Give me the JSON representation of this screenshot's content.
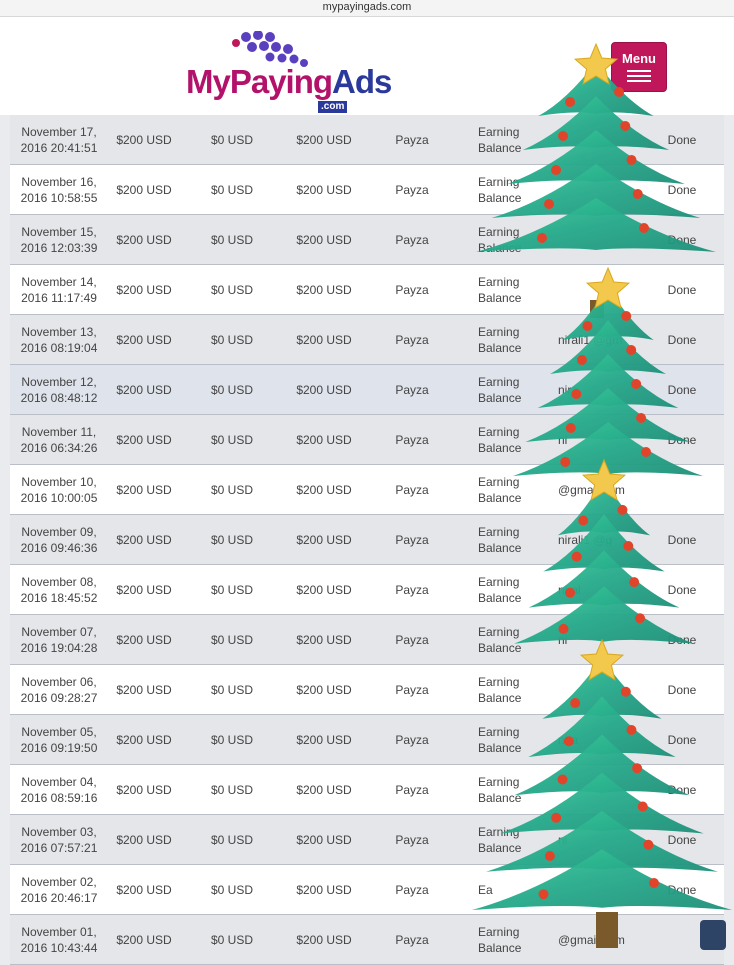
{
  "browser": {
    "url": "mypayingads.com"
  },
  "logo": {
    "part1": "My",
    "part2": "Paying",
    "part3": "Ads",
    "suffix": ".com"
  },
  "menu": {
    "label": "Menu"
  },
  "rows": [
    {
      "date": "November 17, 2016 20:41:51",
      "amount": "$200 USD",
      "fee": "$0 USD",
      "net": "$200 USD",
      "gateway": "Payza",
      "source": "Earning Balance",
      "account": "",
      "status": "Done"
    },
    {
      "date": "November 16, 2016 10:58:55",
      "amount": "$200 USD",
      "fee": "$0 USD",
      "net": "$200 USD",
      "gateway": "Payza",
      "source": "Earning Balance",
      "account": "",
      "status": "Done"
    },
    {
      "date": "November 15, 2016 12:03:39",
      "amount": "$200 USD",
      "fee": "$0 USD",
      "net": "$200 USD",
      "gateway": "Payza",
      "source": "Earning Balance",
      "account": "",
      "status": "Done"
    },
    {
      "date": "November 14, 2016 11:17:49",
      "amount": "$200 USD",
      "fee": "$0 USD",
      "net": "$200 USD",
      "gateway": "Payza",
      "source": "Earning Balance",
      "account": "",
      "status": "Done"
    },
    {
      "date": "November 13, 2016 08:19:04",
      "amount": "$200 USD",
      "fee": "$0 USD",
      "net": "$200 USD",
      "gateway": "Payza",
      "source": "Earning Balance",
      "account": "nirali1 @gm",
      "status": "Done"
    },
    {
      "date": "November 12, 2016 08:48:12",
      "amount": "$200 USD",
      "fee": "$0 USD",
      "net": "$200 USD",
      "gateway": "Payza",
      "source": "Earning Balance",
      "account": "nira",
      "status": "Done"
    },
    {
      "date": "November 11, 2016 06:34:26",
      "amount": "$200 USD",
      "fee": "$0 USD",
      "net": "$200 USD",
      "gateway": "Payza",
      "source": "Earning Balance",
      "account": "ni",
      "status": "Done"
    },
    {
      "date": "November 10, 2016 10:00:05",
      "amount": "$200 USD",
      "fee": "$0 USD",
      "net": "$200 USD",
      "gateway": "Payza",
      "source": "Earning Balance",
      "account": "@gmail.com",
      "status": ""
    },
    {
      "date": "November 09, 2016 09:46:36",
      "amount": "$200 USD",
      "fee": "$0 USD",
      "net": "$200 USD",
      "gateway": "Payza",
      "source": "Earning Balance",
      "account": "nirali1 @g",
      "status": "Done"
    },
    {
      "date": "November 08, 2016 18:45:52",
      "amount": "$200 USD",
      "fee": "$0 USD",
      "net": "$200 USD",
      "gateway": "Payza",
      "source": "Earning Balance",
      "account": "niral",
      "status": "Done"
    },
    {
      "date": "November 07, 2016 19:04:28",
      "amount": "$200 USD",
      "fee": "$0 USD",
      "net": "$200 USD",
      "gateway": "Payza",
      "source": "Earning Balance",
      "account": "ni",
      "status": "Done"
    },
    {
      "date": "November 06, 2016 09:28:27",
      "amount": "$200 USD",
      "fee": "$0 USD",
      "net": "$200 USD",
      "gateway": "Payza",
      "source": "Earning Balance",
      "account": "",
      "status": "Done"
    },
    {
      "date": "November 05, 2016 09:19:50",
      "amount": "$200 USD",
      "fee": "$0 USD",
      "net": "$200 USD",
      "gateway": "Payza",
      "source": "Earning Balance",
      "account": "nira",
      "status": "Done"
    },
    {
      "date": "November 04, 2016 08:59:16",
      "amount": "$200 USD",
      "fee": "$0 USD",
      "net": "$200 USD",
      "gateway": "Payza",
      "source": "Earning Balance",
      "account": "",
      "status": "Done"
    },
    {
      "date": "November 03, 2016 07:57:21",
      "amount": "$200 USD",
      "fee": "$0 USD",
      "net": "$200 USD",
      "gateway": "Payza",
      "source": "Earning Balance",
      "account": "ni",
      "status": "Done"
    },
    {
      "date": "November 02, 2016 20:46:17",
      "amount": "$200 USD",
      "fee": "$0 USD",
      "net": "$200 USD",
      "gateway": "Payza",
      "source": "Ea",
      "account": "",
      "status": "Done"
    },
    {
      "date": "November 01, 2016 10:43:44",
      "amount": "$200 USD",
      "fee": "$0 USD",
      "net": "$200 USD",
      "gateway": "Payza",
      "source": "Earning Balance",
      "account": "@gmail.com",
      "status": ""
    }
  ],
  "colors": {
    "brand_magenta": "#c0175a",
    "brand_blue": "#2b3a9a",
    "tree_green": "#2fb58a"
  }
}
